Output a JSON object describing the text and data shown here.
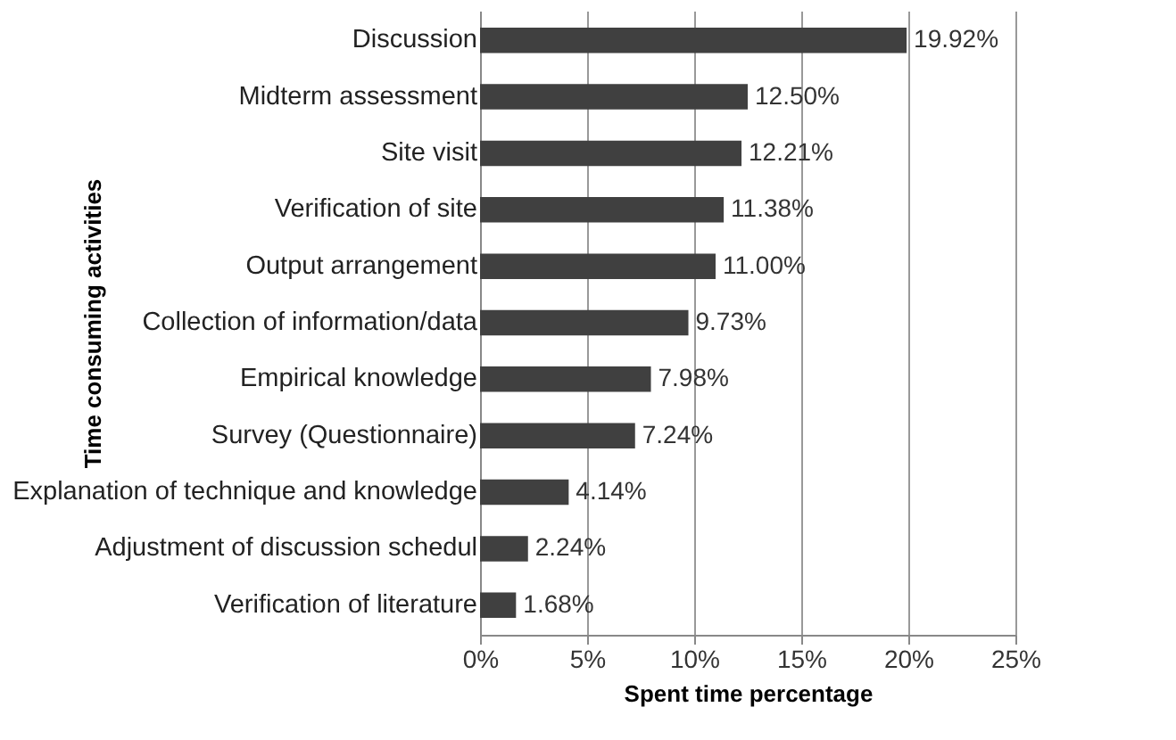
{
  "chart_data": {
    "type": "bar",
    "orientation": "horizontal",
    "xlabel": "Spent time percentage",
    "ylabel": "Time consuming activities",
    "categories": [
      "Discussion",
      "Midterm assessment",
      "Site visit",
      "Verification of site",
      "Output arrangement",
      "Collection of information/data",
      "Empirical knowledge",
      "Survey (Questionnaire)",
      "Explanation of technique and knowledge",
      "Adjustment of discussion schedul",
      "Verification of literature"
    ],
    "values": [
      19.92,
      12.5,
      12.21,
      11.38,
      11.0,
      9.73,
      7.98,
      7.24,
      4.14,
      2.24,
      1.68
    ],
    "value_labels": [
      "19.92%",
      "12.50%",
      "12.21%",
      "11.38%",
      "11.00%",
      "9.73%",
      "7.98%",
      "7.24%",
      "4.14%",
      "2.24%",
      "1.68%"
    ],
    "color": "#404040",
    "xlim": [
      0,
      25
    ],
    "xticks": [
      {
        "value": 0,
        "label": "0%"
      },
      {
        "value": 5,
        "label": "5%"
      },
      {
        "value": 10,
        "label": "10%"
      },
      {
        "value": 15,
        "label": "15%"
      },
      {
        "value": 20,
        "label": "20%"
      },
      {
        "value": 25,
        "label": "25%"
      }
    ],
    "grid": "x"
  }
}
